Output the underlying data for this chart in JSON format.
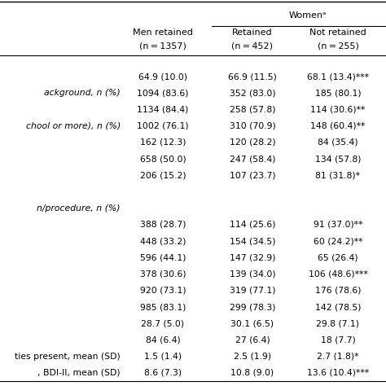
{
  "women_label": "Womenᵃ",
  "col_headers_line1": [
    "Men retained",
    "Retained",
    "Not retained"
  ],
  "col_headers_line2": [
    "(n = 1357)",
    "(n = 452)",
    "(n = 255)"
  ],
  "row_labels": [
    "",
    "ackground, n (%) ",
    "",
    "chool or more), n (%) ",
    "",
    "",
    "",
    "",
    "n/procedure, n (%) ",
    "",
    "",
    "",
    "",
    "",
    "",
    "",
    "",
    "ties present, mean (SD)",
    ", BDI-II, mean (SD)"
  ],
  "col1": [
    "64.9 (10.0)",
    "1094 (83.6)",
    "1134 (84.4)",
    "1002 (76.1)",
    "162 (12.3)",
    "658 (50.0)",
    "206 (15.2)",
    "",
    "",
    "388 (28.7)",
    "448 (33.2)",
    "596 (44.1)",
    "378 (30.6)",
    "920 (73.1)",
    "985 (83.1)",
    "28.7 (5.0)",
    "84 (6.4)",
    "1.5 (1.4)",
    "8.6 (7.3)"
  ],
  "col2": [
    "66.9 (11.5)",
    "352 (83.0)",
    "258 (57.8)",
    "310 (70.9)",
    "120 (28.2)",
    "247 (58.4)",
    "107 (23.7)",
    "",
    "",
    "114 (25.6)",
    "154 (34.5)",
    "147 (32.9)",
    "139 (34.0)",
    "319 (77.1)",
    "299 (78.3)",
    "30.1 (6.5)",
    "27 (6.4)",
    "2.5 (1.9)",
    "10.8 (9.0)"
  ],
  "col3": [
    "68.1 (13.4)***",
    "185 (80.1)",
    "114 (30.6)**",
    "148 (60.4)**",
    "84 (35.4)",
    "134 (57.8)",
    "81 (31.8)*",
    "",
    "",
    "91 (37.0)**",
    "60 (24.2)**",
    "65 (26.4)",
    "106 (48.6)***",
    "176 (78.6)",
    "142 (78.5)",
    "29.8 (7.1)",
    "18 (7.7)",
    "2.7 (1.8)*",
    "13.6 (10.4)***"
  ],
  "italic_label_rows": [
    1,
    3,
    8
  ],
  "label_rows": {
    "1": "ackground, n (%)",
    "3": "chool or more), n (%)",
    "8": "n/procedure, n (%)",
    "17": "ties present, mean (SD)",
    "18": ", BDI-II, mean (SD)"
  },
  "figsize": [
    4.74,
    4.74
  ],
  "dpi": 100
}
